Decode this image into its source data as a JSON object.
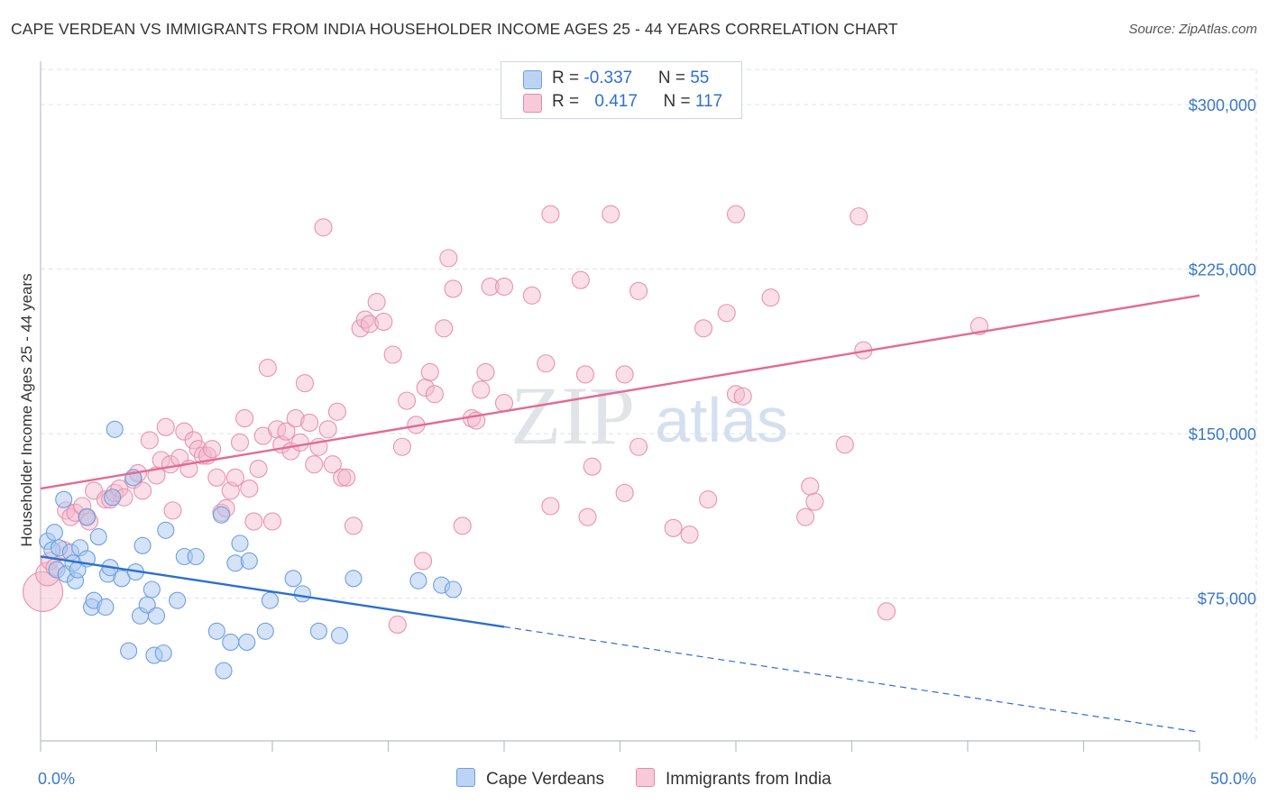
{
  "header": {
    "title": "CAPE VERDEAN VS IMMIGRANTS FROM INDIA HOUSEHOLDER INCOME AGES 25 - 44 YEARS CORRELATION CHART",
    "source": "Source: ZipAtlas.com"
  },
  "watermark": {
    "zip": "ZIP",
    "atlas": "atlas"
  },
  "legend": {
    "rows": [
      {
        "r_label": "R = ",
        "r_value": "-0.337",
        "n_label": "N = ",
        "n_value": "55"
      },
      {
        "r_label": "R = ",
        "r_value": "0.417",
        "n_label": "N = ",
        "n_value": "117"
      }
    ]
  },
  "colors": {
    "blue_fill": "#a9c7ef",
    "blue_stroke": "#6f9fde",
    "blue_line": "#2a6fd0",
    "pink_fill": "#f4b8cc",
    "pink_stroke": "#e58aa8",
    "pink_line": "#e36a95",
    "tick_label": "#3a78c9",
    "grid": "#dde3ea"
  },
  "chart_data": {
    "type": "scatter",
    "title": "CAPE VERDEAN VS IMMIGRANTS FROM INDIA HOUSEHOLDER INCOME AGES 25 - 44 YEARS CORRELATION CHART",
    "xlabel": "",
    "ylabel": "Householder Income Ages 25 - 44 years",
    "xlim": [
      0,
      50
    ],
    "ylim": [
      10000,
      316000
    ],
    "x_tick_labels": [
      "0.0%",
      "50.0%"
    ],
    "y_ticks": [
      75000,
      150000,
      225000,
      300000
    ],
    "y_tick_labels": [
      "$75,000",
      "$150,000",
      "$225,000",
      "$300,000"
    ],
    "grid": true,
    "legend_position": "top-center",
    "series": [
      {
        "name": "Cape Verdeans",
        "r": -0.337,
        "n": 55,
        "trend": {
          "x": [
            0,
            20
          ],
          "y": [
            94000,
            62000
          ],
          "dashed_x": [
            20,
            50
          ],
          "dashed_y": [
            62000,
            14000
          ]
        },
        "points": [
          [
            0.3,
            101000
          ],
          [
            0.5,
            97000
          ],
          [
            0.6,
            105000
          ],
          [
            0.7,
            88000
          ],
          [
            0.8,
            98000
          ],
          [
            1.0,
            120000
          ],
          [
            1.1,
            86000
          ],
          [
            1.3,
            96000
          ],
          [
            1.4,
            91000
          ],
          [
            1.5,
            83000
          ],
          [
            1.6,
            88000
          ],
          [
            1.7,
            98000
          ],
          [
            2.0,
            112000
          ],
          [
            2.0,
            93000
          ],
          [
            2.2,
            71000
          ],
          [
            2.3,
            74000
          ],
          [
            2.5,
            103000
          ],
          [
            2.8,
            71000
          ],
          [
            2.9,
            86000
          ],
          [
            3.0,
            89000
          ],
          [
            3.1,
            121000
          ],
          [
            3.2,
            152000
          ],
          [
            3.5,
            84000
          ],
          [
            3.8,
            51000
          ],
          [
            4.0,
            130000
          ],
          [
            4.1,
            87000
          ],
          [
            4.3,
            67000
          ],
          [
            4.4,
            99000
          ],
          [
            4.6,
            72000
          ],
          [
            4.8,
            79000
          ],
          [
            4.9,
            49000
          ],
          [
            5.0,
            67000
          ],
          [
            5.3,
            50000
          ],
          [
            5.4,
            106000
          ],
          [
            5.9,
            74000
          ],
          [
            6.2,
            94000
          ],
          [
            6.7,
            94000
          ],
          [
            7.6,
            60000
          ],
          [
            7.8,
            113000
          ],
          [
            7.9,
            42000
          ],
          [
            8.2,
            55000
          ],
          [
            8.4,
            91000
          ],
          [
            8.6,
            100000
          ],
          [
            8.9,
            55000
          ],
          [
            9.0,
            92000
          ],
          [
            9.7,
            60000
          ],
          [
            9.9,
            74000
          ],
          [
            10.9,
            84000
          ],
          [
            11.3,
            77000
          ],
          [
            12.0,
            60000
          ],
          [
            12.9,
            58000
          ],
          [
            13.5,
            84000
          ],
          [
            16.3,
            83000
          ],
          [
            17.3,
            81000
          ],
          [
            17.8,
            79000
          ]
        ]
      },
      {
        "name": "Immigrants from India",
        "r": 0.417,
        "n": 117,
        "trend": {
          "x": [
            0,
            50
          ],
          "y": [
            125000,
            213000
          ]
        },
        "points": [
          [
            0.1,
            78000
          ],
          [
            0.3,
            86000
          ],
          [
            0.4,
            92000
          ],
          [
            0.6,
            89000
          ],
          [
            1.0,
            97000
          ],
          [
            1.1,
            115000
          ],
          [
            1.3,
            112000
          ],
          [
            1.5,
            114000
          ],
          [
            1.8,
            117000
          ],
          [
            2.0,
            112000
          ],
          [
            2.1,
            110000
          ],
          [
            2.3,
            124000
          ],
          [
            2.8,
            120000
          ],
          [
            3.0,
            120000
          ],
          [
            3.2,
            123000
          ],
          [
            3.4,
            125000
          ],
          [
            3.6,
            121000
          ],
          [
            4.0,
            129000
          ],
          [
            4.2,
            132000
          ],
          [
            4.4,
            124000
          ],
          [
            4.7,
            147000
          ],
          [
            5.0,
            131000
          ],
          [
            5.2,
            138000
          ],
          [
            5.4,
            153000
          ],
          [
            5.6,
            136000
          ],
          [
            5.7,
            115000
          ],
          [
            6.0,
            139000
          ],
          [
            6.2,
            151000
          ],
          [
            6.4,
            134000
          ],
          [
            6.6,
            147000
          ],
          [
            6.8,
            143000
          ],
          [
            7.0,
            140000
          ],
          [
            7.2,
            140000
          ],
          [
            7.4,
            143000
          ],
          [
            7.6,
            130000
          ],
          [
            7.8,
            114000
          ],
          [
            8.0,
            116000
          ],
          [
            8.2,
            124000
          ],
          [
            8.4,
            130000
          ],
          [
            8.6,
            146000
          ],
          [
            8.8,
            157000
          ],
          [
            9.0,
            125000
          ],
          [
            9.2,
            110000
          ],
          [
            9.4,
            134000
          ],
          [
            9.6,
            149000
          ],
          [
            9.8,
            180000
          ],
          [
            10.0,
            110000
          ],
          [
            10.2,
            152000
          ],
          [
            10.4,
            145000
          ],
          [
            10.6,
            151000
          ],
          [
            10.8,
            142000
          ],
          [
            11.0,
            157000
          ],
          [
            11.2,
            146000
          ],
          [
            11.4,
            173000
          ],
          [
            11.6,
            155000
          ],
          [
            11.8,
            136000
          ],
          [
            12.0,
            144000
          ],
          [
            12.2,
            244000
          ],
          [
            12.4,
            152000
          ],
          [
            12.6,
            136000
          ],
          [
            12.8,
            160000
          ],
          [
            13.0,
            130000
          ],
          [
            13.2,
            130000
          ],
          [
            13.5,
            108000
          ],
          [
            13.8,
            198000
          ],
          [
            14.0,
            202000
          ],
          [
            14.2,
            200000
          ],
          [
            14.5,
            210000
          ],
          [
            14.8,
            201000
          ],
          [
            15.2,
            186000
          ],
          [
            15.4,
            63000
          ],
          [
            15.6,
            144000
          ],
          [
            15.8,
            165000
          ],
          [
            16.2,
            154000
          ],
          [
            16.5,
            92000
          ],
          [
            16.6,
            171000
          ],
          [
            16.8,
            178000
          ],
          [
            17.0,
            168000
          ],
          [
            17.4,
            198000
          ],
          [
            17.6,
            230000
          ],
          [
            17.8,
            216000
          ],
          [
            18.2,
            108000
          ],
          [
            18.6,
            157000
          ],
          [
            18.8,
            156000
          ],
          [
            19.0,
            170000
          ],
          [
            19.2,
            178000
          ],
          [
            19.4,
            217000
          ],
          [
            20.0,
            164000
          ],
          [
            20.0,
            217000
          ],
          [
            21.2,
            213000
          ],
          [
            21.8,
            182000
          ],
          [
            22.0,
            250000
          ],
          [
            22.0,
            117000
          ],
          [
            23.3,
            220000
          ],
          [
            23.5,
            177000
          ],
          [
            23.6,
            112000
          ],
          [
            23.8,
            135000
          ],
          [
            25.2,
            123000
          ],
          [
            24.6,
            250000
          ],
          [
            25.2,
            177000
          ],
          [
            25.8,
            215000
          ],
          [
            25.8,
            144000
          ],
          [
            27.3,
            107000
          ],
          [
            28.0,
            104000
          ],
          [
            28.6,
            198000
          ],
          [
            28.8,
            120000
          ],
          [
            29.6,
            205000
          ],
          [
            30.0,
            168000
          ],
          [
            30.0,
            250000
          ],
          [
            31.5,
            212000
          ],
          [
            33.0,
            112000
          ],
          [
            33.2,
            126000
          ],
          [
            33.4,
            119000
          ],
          [
            34.7,
            145000
          ],
          [
            35.3,
            249000
          ],
          [
            35.5,
            188000
          ],
          [
            36.5,
            69000
          ],
          [
            40.5,
            199000
          ],
          [
            30.3,
            167000
          ]
        ]
      }
    ]
  },
  "bottom_legend": {
    "blue_label": "Cape Verdeans",
    "pink_label": "Immigrants from India"
  }
}
